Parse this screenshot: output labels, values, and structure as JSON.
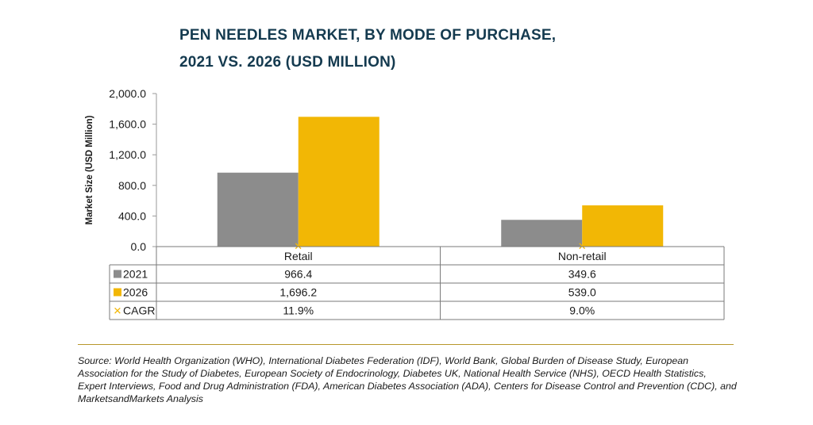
{
  "title_line1": "PEN NEEDLES MARKET, BY MODE OF PURCHASE,",
  "title_line2": "2021 VS. 2026 (USD MILLION)",
  "source": "Source: World Health Organization (WHO), International Diabetes Federation (IDF), World Bank, Global Burden of Disease Study, European Association for the Study of Diabetes, European Society of Endocrinology, Diabetes UK, National Health Service (NHS), OECD Health Statistics, Expert Interviews, Food and Drug Administration (FDA), American Diabetes Association (ADA), Centers for Disease Control and Prevention (CDC), and MarketsandMarkets Analysis",
  "chart_data": {
    "type": "bar",
    "ylabel": "Market Size (USD Million)",
    "ylim": [
      0,
      2000
    ],
    "yticks": [
      "0.0",
      "400.0",
      "800.0",
      "1,200.0",
      "1,600.0",
      "2,000.0"
    ],
    "categories": [
      "Retail",
      "Non-retail"
    ],
    "series": [
      {
        "name": "2021",
        "color": "#8c8c8c",
        "values": [
          966.4,
          349.6
        ],
        "labels": [
          "966.4",
          "349.6"
        ]
      },
      {
        "name": "2026",
        "color": "#f2b705",
        "values": [
          1696.2,
          539.0
        ],
        "labels": [
          "1,696.2",
          "539.0"
        ]
      }
    ],
    "cagr": {
      "name": "CAGR",
      "color": "#f2b705",
      "labels": [
        "11.9%",
        "9.0%"
      ]
    },
    "grid": false,
    "legend": "table-left"
  }
}
